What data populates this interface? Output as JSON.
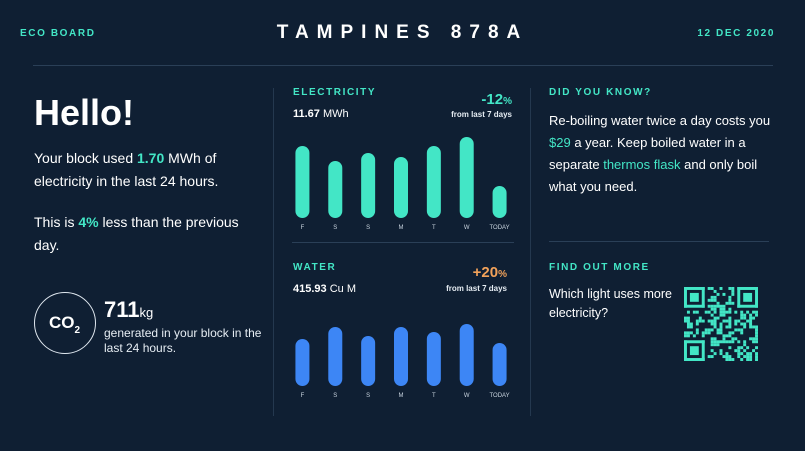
{
  "header": {
    "brand": "ECO BOARD",
    "title": "TAMPINES 878A",
    "date": "12 DEC 2020"
  },
  "summary": {
    "greeting": "Hello!",
    "p1_before": "Your block used ",
    "p1_value": "1.70",
    "p1_after": " MWh of electricity in the last 24 hours.",
    "p2_before": "This is ",
    "p2_value": "4%",
    "p2_after": " less than the previous day."
  },
  "co2": {
    "icon_text": "CO",
    "icon_subscript": "2",
    "value": "711",
    "unit": "kg",
    "description": "generated in your block in the last 24 hours."
  },
  "electricity": {
    "label": "ELECTRICITY",
    "value": "11.67",
    "unit": " MWh",
    "change": "-12",
    "change_symbol": "%",
    "change_note": "from last 7 days",
    "color": "#43e6c6"
  },
  "water": {
    "label": "WATER",
    "value": "415.93",
    "unit": " Cu M",
    "change": "+20",
    "change_symbol": "%",
    "change_note": "from last 7 days",
    "color": "#3d86f5",
    "change_color": "#f2a25a"
  },
  "did_you_know": {
    "label": "DID YOU KNOW?",
    "t1": "Re-boiling water twice a day costs you ",
    "t2": "$29",
    "t3": " a year. Keep boiled water in a separate ",
    "t4": "thermos flask",
    "t5": " and only boil what you need."
  },
  "find_out_more": {
    "label": "FIND OUT MORE",
    "question": "Which light uses more electricity?",
    "qr_icon": "qr-code-icon"
  },
  "chart_data": [
    {
      "type": "bar",
      "categories": [
        "F",
        "S",
        "S",
        "M",
        "T",
        "W",
        "TODAY"
      ],
      "values": [
        72,
        57,
        65,
        61,
        72,
        81,
        32
      ],
      "ylim": [
        0,
        100
      ]
    },
    {
      "type": "bar",
      "categories": [
        "F",
        "S",
        "S",
        "M",
        "T",
        "W",
        "TODAY"
      ],
      "values": [
        47,
        59,
        50,
        59,
        54,
        62,
        43
      ],
      "ylim": [
        0,
        100
      ]
    }
  ]
}
